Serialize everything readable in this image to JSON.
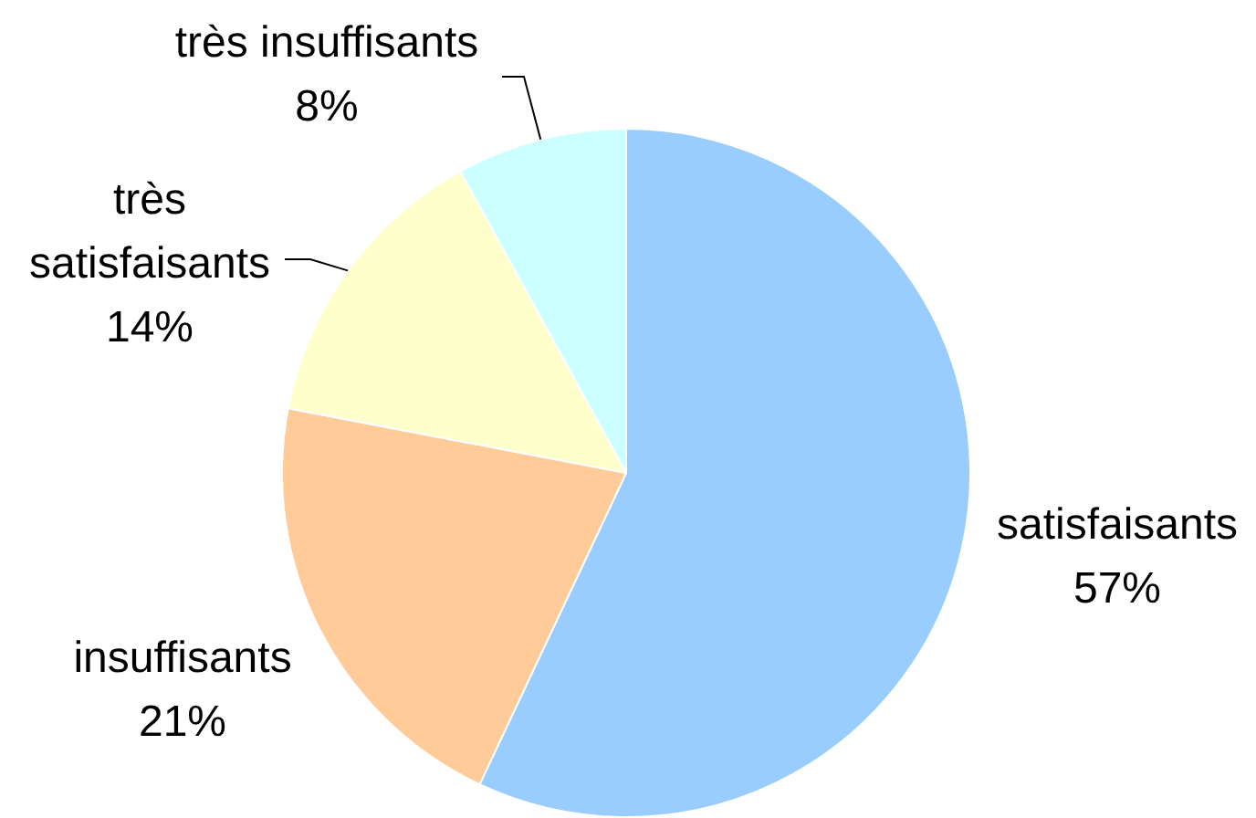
{
  "chart_data": {
    "type": "pie",
    "categories": [
      "satisfaisants",
      "insuffisants",
      "très satisfaisants",
      "très insuffisants"
    ],
    "values": [
      57,
      21,
      14,
      8
    ],
    "colors": [
      "#99ccff",
      "#ffcc99",
      "#ffffcc",
      "#ccffff"
    ],
    "value_labels": [
      "57%",
      "21%",
      "14%",
      "8%"
    ]
  }
}
